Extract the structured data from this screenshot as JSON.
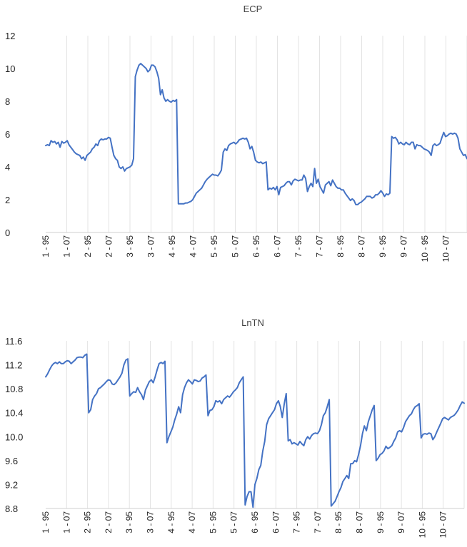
{
  "colors": {
    "series": "#4472c4",
    "grid": "#e3e3e3",
    "text": "#262626"
  },
  "chart_data": [
    {
      "type": "line",
      "title": "ECP",
      "xlabel": "",
      "ylabel": "",
      "ylim": [
        0,
        12
      ],
      "yticks": [
        "0",
        "2",
        "4",
        "6",
        "8",
        "10",
        "12"
      ],
      "grid": "vertical",
      "x_tick_labels": [
        "1 - 95",
        "1 - 07",
        "2 - 95",
        "2 - 07",
        "3 - 95",
        "3 - 07",
        "4 - 95",
        "4 - 07",
        "5 - 95",
        "5 - 07",
        "6 - 95",
        "6 - 07",
        "7 - 95",
        "7 - 07",
        "8 - 95",
        "8 - 07",
        "9 - 95",
        "9 - 07",
        "10 - 95",
        "10 - 07"
      ],
      "series": [
        {
          "values": [
            5.3,
            5.35,
            5.3,
            5.6,
            5.5,
            5.55,
            5.4,
            5.5,
            5.2,
            5.55,
            5.45,
            5.5,
            5.6,
            5.35,
            5.2,
            5.05,
            4.9,
            4.8,
            4.75,
            4.7,
            4.5,
            4.6,
            4.4,
            4.7,
            4.8,
            4.9,
            5.1,
            5.2,
            5.4,
            5.3,
            5.6,
            5.7,
            5.65,
            5.7,
            5.7,
            5.8,
            5.75,
            5.2,
            4.7,
            4.5,
            4.4,
            4.0,
            3.9,
            4.0,
            3.75,
            3.9,
            3.95,
            4.0,
            4.1,
            4.5,
            9.5,
            9.9,
            10.2,
            10.3,
            10.2,
            10.1,
            10.0,
            9.8,
            9.9,
            10.2,
            10.2,
            10.1,
            9.8,
            9.4,
            8.4,
            8.7,
            8.2,
            8.0,
            8.1,
            8.0,
            7.95,
            8.05,
            8.0,
            8.1,
            1.75,
            1.75,
            1.75,
            1.75,
            1.8,
            1.8,
            1.85,
            1.9,
            2.0,
            2.2,
            2.4,
            2.5,
            2.6,
            2.7,
            2.9,
            3.1,
            3.25,
            3.35,
            3.45,
            3.55,
            3.5,
            3.5,
            3.45,
            3.6,
            3.8,
            4.9,
            5.1,
            5.0,
            5.3,
            5.4,
            5.45,
            5.5,
            5.4,
            5.5,
            5.65,
            5.7,
            5.75,
            5.7,
            5.75,
            5.5,
            5.1,
            5.25,
            4.9,
            4.4,
            4.3,
            4.25,
            4.3,
            4.2,
            4.25,
            4.3,
            2.6,
            2.7,
            2.65,
            2.75,
            2.6,
            2.8,
            2.3,
            2.75,
            2.8,
            2.85,
            3.0,
            3.1,
            3.1,
            2.9,
            3.15,
            3.25,
            3.2,
            3.15,
            3.2,
            3.2,
            3.5,
            3.3,
            2.5,
            2.8,
            3.0,
            2.8,
            3.9,
            3.0,
            3.25,
            2.8,
            2.6,
            2.4,
            2.9,
            3.0,
            3.1,
            2.85,
            3.2,
            3.0,
            2.8,
            2.7,
            2.7,
            2.6,
            2.6,
            2.4,
            2.25,
            2.1,
            1.95,
            2.05,
            1.95,
            1.7,
            1.7,
            1.8,
            1.85,
            1.95,
            2.05,
            2.2,
            2.2,
            2.2,
            2.1,
            2.15,
            2.3,
            2.3,
            2.4,
            2.55,
            2.4,
            2.2,
            2.35,
            2.3,
            2.4,
            5.85,
            5.75,
            5.8,
            5.65,
            5.4,
            5.5,
            5.4,
            5.35,
            5.5,
            5.4,
            5.35,
            5.5,
            5.5,
            5.1,
            5.35,
            5.3,
            5.3,
            5.2,
            5.1,
            5.05,
            5.0,
            4.9,
            4.7,
            5.3,
            5.4,
            5.3,
            5.35,
            5.45,
            5.8,
            6.1,
            5.85,
            5.9,
            6.0,
            6.05,
            6.0,
            6.05,
            6.0,
            5.75,
            5.1,
            4.9,
            4.7,
            4.75,
            4.5
          ]
        }
      ]
    },
    {
      "type": "line",
      "title": "LnTN",
      "xlabel": "",
      "ylabel": "",
      "ylim": [
        8.8,
        11.6
      ],
      "yticks": [
        "8.8",
        "9.2",
        "9.6",
        "10.0",
        "10.4",
        "10.8",
        "11.2",
        "11.6"
      ],
      "grid": "vertical",
      "x_tick_labels": [
        "1 - 95",
        "1 - 07",
        "2 - 95",
        "2 - 07",
        "3 - 95",
        "3 - 07",
        "4 - 95",
        "4 - 07",
        "5 - 95",
        "5 - 07",
        "6 - 95",
        "6 - 07",
        "7 - 95",
        "7 - 07",
        "8 - 95",
        "8 - 07",
        "9 - 95",
        "9 - 07",
        "10 - 95",
        "10 - 07"
      ],
      "series": [
        {
          "values": [
            11.0,
            11.05,
            11.12,
            11.18,
            11.22,
            11.24,
            11.22,
            11.25,
            11.22,
            11.22,
            11.25,
            11.27,
            11.26,
            11.22,
            11.25,
            11.28,
            11.32,
            11.33,
            11.33,
            11.32,
            11.36,
            11.38,
            10.4,
            10.45,
            10.62,
            10.68,
            10.72,
            10.8,
            10.82,
            10.85,
            10.88,
            10.92,
            10.95,
            10.94,
            10.88,
            10.87,
            10.9,
            10.95,
            11.0,
            11.06,
            11.2,
            11.28,
            11.3,
            10.68,
            10.72,
            10.75,
            10.74,
            10.82,
            10.75,
            10.7,
            10.62,
            10.78,
            10.85,
            10.92,
            10.95,
            10.9,
            11.0,
            11.12,
            11.22,
            11.24,
            11.22,
            11.26,
            9.9,
            10.0,
            10.08,
            10.16,
            10.28,
            10.38,
            10.5,
            10.4,
            10.7,
            10.82,
            10.9,
            10.95,
            10.92,
            10.88,
            10.95,
            10.94,
            10.92,
            10.93,
            10.98,
            11.0,
            11.03,
            10.35,
            10.44,
            10.45,
            10.5,
            10.6,
            10.58,
            10.6,
            10.55,
            10.62,
            10.65,
            10.68,
            10.66,
            10.7,
            10.75,
            10.78,
            10.82,
            10.9,
            10.95,
            11.0,
            8.86,
            9.0,
            9.08,
            9.08,
            8.82,
            9.2,
            9.3,
            9.45,
            9.52,
            9.76,
            9.92,
            10.2,
            10.3,
            10.35,
            10.4,
            10.45,
            10.55,
            10.6,
            10.5,
            10.32,
            10.55,
            10.72,
            9.93,
            9.95,
            9.88,
            9.9,
            9.88,
            9.86,
            9.92,
            9.88,
            9.85,
            9.95,
            10.0,
            9.96,
            10.02,
            10.05,
            10.06,
            10.05,
            10.1,
            10.2,
            10.35,
            10.4,
            10.5,
            10.62,
            8.84,
            8.88,
            8.92,
            9.0,
            9.08,
            9.15,
            9.25,
            9.3,
            9.35,
            9.3,
            9.55,
            9.55,
            9.6,
            9.58,
            9.7,
            9.85,
            10.05,
            10.18,
            10.1,
            10.25,
            10.35,
            10.45,
            10.52,
            9.6,
            9.64,
            9.7,
            9.72,
            9.76,
            9.84,
            9.8,
            9.82,
            9.85,
            9.92,
            9.98,
            10.08,
            10.1,
            10.08,
            10.15,
            10.25,
            10.3,
            10.35,
            10.38,
            10.45,
            10.5,
            10.52,
            10.55,
            9.98,
            10.04,
            10.05,
            10.04,
            10.06,
            10.05,
            9.95,
            10.0,
            10.08,
            10.15,
            10.22,
            10.3,
            10.32,
            10.3,
            10.28,
            10.32,
            10.34,
            10.36,
            10.4,
            10.45,
            10.52,
            10.58,
            10.56
          ]
        }
      ]
    }
  ]
}
